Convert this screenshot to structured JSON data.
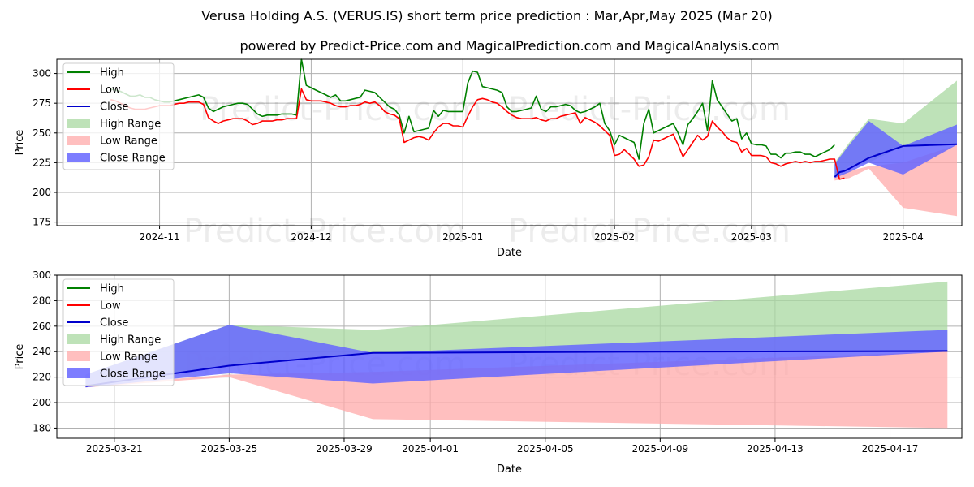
{
  "title": "Verusa Holding A.S. (VERUS.IS) short term price prediction : Mar,Apr,May 2025 (Mar 20)",
  "subtitle": "powered by Predict-Price.com and MagicalPrediction.com and MagicalAnalysis.com",
  "watermark": "Predict-Price.com",
  "colors": {
    "high": "#008000",
    "low": "#ff0000",
    "close": "#0000cc",
    "high_range": "#a8d8a0",
    "low_range": "#ffaaaa",
    "close_range": "#6666ff",
    "grid": "#b0b0b0"
  },
  "legend": [
    "High",
    "Low",
    "Close",
    "High Range",
    "Low Range",
    "Close Range"
  ],
  "chart_data": [
    {
      "type": "line",
      "title": "Verusa Holding A.S. (VERUS.IS) short term price prediction : Mar,Apr,May 2025 (Mar 20)",
      "xlabel": "Date",
      "ylabel": "Price",
      "x_range_days": [
        -11,
        174
      ],
      "x_origin": "2024-10-21",
      "ylim": [
        172,
        312
      ],
      "yticks": [
        175,
        200,
        225,
        250,
        275,
        300
      ],
      "xticks": [
        {
          "day": 10,
          "label": "2024-11"
        },
        {
          "day": 41,
          "label": "2024-12"
        },
        {
          "day": 72,
          "label": "2025-01"
        },
        {
          "day": 103,
          "label": "2025-02"
        },
        {
          "day": 131,
          "label": "2025-03"
        },
        {
          "day": 162,
          "label": "2025-04"
        }
      ],
      "legend_position": "top-left",
      "series": [
        {
          "name": "High",
          "x": [
            0,
            1,
            2,
            3,
            4,
            5,
            6,
            7,
            8,
            9,
            10,
            11,
            12,
            13,
            14,
            15,
            16,
            17,
            18,
            19,
            20,
            21,
            22,
            23,
            24,
            25,
            26,
            27,
            28,
            29,
            30,
            31,
            32,
            33,
            34,
            35,
            36,
            37,
            38,
            39,
            40,
            41,
            42,
            43,
            44,
            45,
            46,
            47,
            48,
            49,
            50,
            51,
            52,
            53,
            54,
            55,
            56,
            57,
            58,
            59,
            60,
            61,
            62,
            63,
            64,
            65,
            66,
            67,
            68,
            69,
            70,
            71,
            72,
            73,
            74,
            75,
            76,
            77,
            78,
            79,
            80,
            81,
            82,
            83,
            84,
            85,
            86,
            87,
            88,
            89,
            90,
            91,
            92,
            93,
            94,
            95,
            96,
            97,
            98,
            99,
            100,
            101,
            102,
            103,
            104,
            105,
            106,
            107,
            108,
            109,
            110,
            111,
            112,
            113,
            114,
            115,
            116,
            117,
            118,
            119,
            120,
            121,
            122,
            123,
            124,
            125,
            126,
            127,
            128,
            129,
            130,
            131,
            132,
            133,
            134,
            135,
            136,
            137,
            138,
            139,
            140,
            141,
            142,
            143,
            144,
            145,
            146,
            147,
            148
          ],
          "values": [
            287,
            286,
            285,
            283,
            281,
            281,
            282,
            280,
            280,
            278,
            277,
            276,
            276,
            277,
            278,
            279,
            280,
            281,
            282,
            280,
            271,
            268,
            270,
            272,
            273,
            274,
            275,
            275,
            274,
            270,
            266,
            264,
            265,
            265,
            265,
            266,
            266,
            266,
            265,
            312,
            290,
            288,
            286,
            284,
            282,
            280,
            282,
            277,
            277,
            278,
            279,
            280,
            286,
            285,
            284,
            280,
            276,
            272,
            270,
            265,
            250,
            264,
            251,
            252,
            253,
            254,
            269,
            264,
            269,
            268,
            268,
            268,
            268,
            292,
            302,
            301,
            289,
            288,
            287,
            286,
            284,
            272,
            268,
            268,
            269,
            270,
            271,
            281,
            270,
            268,
            272,
            272,
            273,
            274,
            273,
            269,
            267,
            268,
            270,
            272,
            275,
            258,
            252,
            240,
            248,
            246,
            244,
            242,
            228,
            258,
            270,
            250,
            252,
            254,
            256,
            258,
            250,
            240,
            257,
            262,
            268,
            275,
            252,
            294,
            278,
            272,
            266,
            260,
            262,
            245,
            250,
            241,
            240,
            240,
            239,
            232,
            232,
            229,
            233,
            233,
            234,
            234,
            232,
            232,
            230,
            232,
            234,
            236,
            240
          ]
        },
        {
          "name": "Low",
          "x": [
            0,
            1,
            2,
            3,
            4,
            5,
            6,
            7,
            8,
            9,
            10,
            11,
            12,
            13,
            14,
            15,
            16,
            17,
            18,
            19,
            20,
            21,
            22,
            23,
            24,
            25,
            26,
            27,
            28,
            29,
            30,
            31,
            32,
            33,
            34,
            35,
            36,
            37,
            38,
            39,
            40,
            41,
            42,
            43,
            44,
            45,
            46,
            47,
            48,
            49,
            50,
            51,
            52,
            53,
            54,
            55,
            56,
            57,
            58,
            59,
            60,
            61,
            62,
            63,
            64,
            65,
            66,
            67,
            68,
            69,
            70,
            71,
            72,
            73,
            74,
            75,
            76,
            77,
            78,
            79,
            80,
            81,
            82,
            83,
            84,
            85,
            86,
            87,
            88,
            89,
            90,
            91,
            92,
            93,
            94,
            95,
            96,
            97,
            98,
            99,
            100,
            101,
            102,
            103,
            104,
            105,
            106,
            107,
            108,
            109,
            110,
            111,
            112,
            113,
            114,
            115,
            116,
            117,
            118,
            119,
            120,
            121,
            122,
            123,
            124,
            125,
            126,
            127,
            128,
            129,
            130,
            131,
            132,
            133,
            134,
            135,
            136,
            137,
            138,
            139,
            140,
            141,
            142,
            143,
            144,
            145,
            146,
            147,
            148,
            149,
            150
          ],
          "values": [
            278,
            277,
            275,
            273,
            271,
            270,
            270,
            270,
            271,
            272,
            273,
            273,
            273,
            274,
            275,
            275,
            276,
            276,
            276,
            274,
            263,
            260,
            258,
            260,
            261,
            262,
            262,
            262,
            260,
            257,
            258,
            260,
            260,
            260,
            261,
            261,
            262,
            262,
            262,
            287,
            278,
            277,
            277,
            277,
            276,
            275,
            273,
            272,
            272,
            273,
            273,
            274,
            276,
            275,
            276,
            273,
            268,
            266,
            265,
            262,
            242,
            244,
            246,
            247,
            246,
            244,
            250,
            255,
            258,
            258,
            256,
            256,
            255,
            264,
            272,
            278,
            279,
            278,
            276,
            275,
            272,
            268,
            265,
            263,
            262,
            262,
            262,
            263,
            261,
            260,
            262,
            262,
            264,
            265,
            266,
            267,
            258,
            263,
            261,
            259,
            256,
            252,
            248,
            231,
            232,
            236,
            232,
            228,
            222,
            223,
            230,
            244,
            243,
            245,
            247,
            249,
            240,
            230,
            236,
            242,
            248,
            244,
            247,
            260,
            255,
            251,
            246,
            243,
            242,
            234,
            237,
            231,
            231,
            231,
            230,
            225,
            224,
            222,
            224,
            225,
            226,
            225,
            226,
            225,
            226,
            226,
            227,
            228,
            228,
            211,
            212
          ]
        },
        {
          "name": "Close",
          "x": [
            148,
            149,
            150,
            151,
            155,
            162,
            173
          ],
          "values": [
            213,
            217,
            218,
            220,
            229,
            239,
            240.5
          ]
        }
      ],
      "ranges": [
        {
          "name": "High Range",
          "x": [
            148,
            151,
            155,
            162,
            173
          ],
          "upper": [
            225,
            242,
            262,
            258,
            294
          ],
          "lower": [
            213,
            222,
            225,
            239,
            240.5
          ]
        },
        {
          "name": "Low Range",
          "x": [
            148,
            151,
            155,
            162,
            173
          ],
          "upper": [
            213,
            218,
            222,
            225,
            240
          ],
          "lower": [
            210,
            212,
            220,
            187,
            180
          ]
        },
        {
          "name": "Close Range",
          "x": [
            148,
            151,
            155,
            162,
            173
          ],
          "upper": [
            224,
            240,
            260,
            239,
            257
          ],
          "lower": [
            212,
            217,
            225,
            215,
            240
          ]
        }
      ]
    },
    {
      "type": "line",
      "xlabel": "Date",
      "ylabel": "Price",
      "x_range_days": [
        -1.0,
        30.5
      ],
      "x_origin": "2025-03-20",
      "ylim": [
        172,
        300
      ],
      "yticks": [
        180,
        200,
        220,
        240,
        260,
        280,
        300
      ],
      "xticks": [
        {
          "day": 1,
          "label": "2025-03-21"
        },
        {
          "day": 5,
          "label": "2025-03-25"
        },
        {
          "day": 9,
          "label": "2025-03-29"
        },
        {
          "day": 12,
          "label": "2025-04-01"
        },
        {
          "day": 16,
          "label": "2025-04-05"
        },
        {
          "day": 20,
          "label": "2025-04-09"
        },
        {
          "day": 24,
          "label": "2025-04-13"
        },
        {
          "day": 28,
          "label": "2025-04-17"
        }
      ],
      "legend_position": "top-left",
      "series": [
        {
          "name": "High",
          "x": [],
          "values": []
        },
        {
          "name": "Low",
          "x": [],
          "values": []
        },
        {
          "name": "Close",
          "x": [
            0,
            5,
            10,
            15,
            20,
            25,
            30
          ],
          "values": [
            213,
            229,
            239,
            239.5,
            240,
            240.2,
            240.5
          ]
        }
      ],
      "ranges": [
        {
          "name": "High Range",
          "x": [
            0,
            5,
            10,
            30
          ],
          "upper": [
            222,
            261,
            257,
            295
          ],
          "lower": [
            213,
            229,
            239,
            240.5
          ]
        },
        {
          "name": "Low Range",
          "x": [
            0,
            5,
            10,
            30
          ],
          "upper": [
            213,
            222,
            224,
            240
          ],
          "lower": [
            212,
            220,
            187,
            180
          ]
        },
        {
          "name": "Close Range",
          "x": [
            0,
            5,
            10,
            30
          ],
          "upper": [
            222,
            261,
            239,
            257
          ],
          "lower": [
            212,
            223,
            215,
            240
          ]
        }
      ]
    }
  ]
}
